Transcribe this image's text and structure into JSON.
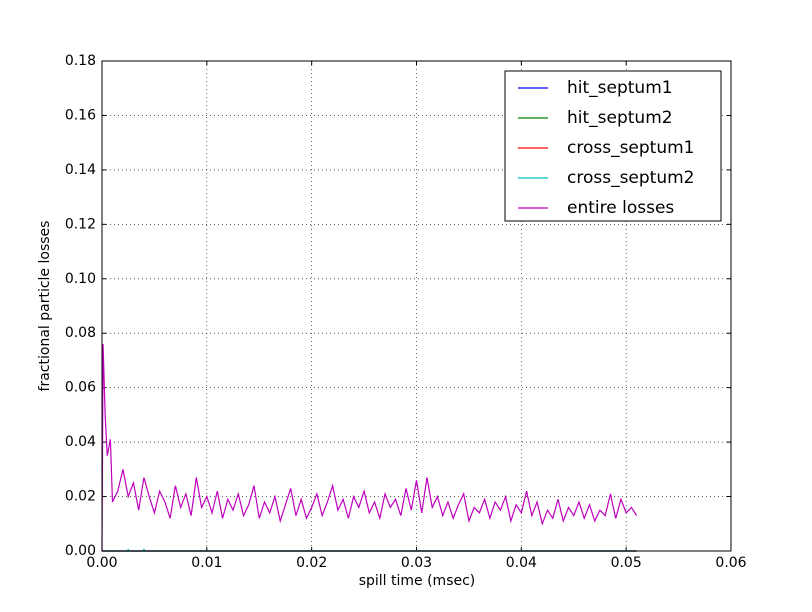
{
  "chart_data": {
    "type": "line",
    "xlabel": "spill time (msec)",
    "ylabel": "fractional particle losses",
    "xlim": [
      0,
      0.06
    ],
    "ylim": [
      0,
      0.18
    ],
    "xticks": [
      {
        "value": 0,
        "label": "0.00"
      },
      {
        "value": 0.01,
        "label": "0.01"
      },
      {
        "value": 0.02,
        "label": "0.02"
      },
      {
        "value": 0.03,
        "label": "0.03"
      },
      {
        "value": 0.04,
        "label": "0.04"
      },
      {
        "value": 0.05,
        "label": "0.05"
      },
      {
        "value": 0.06,
        "label": "0.06"
      }
    ],
    "yticks": [
      {
        "value": 0,
        "label": "0.00"
      },
      {
        "value": 0.02,
        "label": "0.02"
      },
      {
        "value": 0.04,
        "label": "0.04"
      },
      {
        "value": 0.06,
        "label": "0.06"
      },
      {
        "value": 0.08,
        "label": "0.08"
      },
      {
        "value": 0.1,
        "label": "0.10"
      },
      {
        "value": 0.12,
        "label": "0.12"
      },
      {
        "value": 0.14,
        "label": "0.14"
      },
      {
        "value": 0.16,
        "label": "0.16"
      },
      {
        "value": 0.18,
        "label": "0.18"
      }
    ],
    "grid": true,
    "legend": "upper right",
    "series": [
      {
        "name": "hit_septum1",
        "color": "#0000ff",
        "x": [
          0,
          0.051
        ],
        "values": [
          0,
          0
        ]
      },
      {
        "name": "hit_septum2",
        "color": "#008000",
        "x": [
          0,
          0.051
        ],
        "values": [
          0,
          0
        ]
      },
      {
        "name": "cross_septum1",
        "color": "#ff0000",
        "x": [
          0,
          0.051
        ],
        "values": [
          0,
          0
        ]
      },
      {
        "name": "cross_septum2",
        "color": "#00bfbf",
        "x": [
          0,
          0.0024,
          0.0025,
          0.0026,
          0.0039,
          0.004,
          0.0041,
          0.051
        ],
        "values": [
          0,
          0,
          0.0005,
          0,
          0,
          0.0006,
          0,
          0
        ]
      },
      {
        "name": "entire losses",
        "color": "#bf00bf",
        "x": [
          0,
          0.0001,
          0.0003,
          0.0005,
          0.0008,
          0.001,
          0.0015,
          0.002,
          0.0025,
          0.003,
          0.0035,
          0.004,
          0.0045,
          0.005,
          0.0055,
          0.006,
          0.0065,
          0.007,
          0.0075,
          0.008,
          0.0085,
          0.009,
          0.0095,
          0.01,
          0.0105,
          0.011,
          0.0115,
          0.012,
          0.0125,
          0.013,
          0.0135,
          0.014,
          0.0145,
          0.015,
          0.0155,
          0.016,
          0.0165,
          0.017,
          0.0175,
          0.018,
          0.0185,
          0.019,
          0.0195,
          0.02,
          0.0205,
          0.021,
          0.0215,
          0.022,
          0.0225,
          0.023,
          0.0235,
          0.024,
          0.0245,
          0.025,
          0.0255,
          0.026,
          0.0265,
          0.027,
          0.0275,
          0.028,
          0.0285,
          0.029,
          0.0295,
          0.03,
          0.0305,
          0.031,
          0.0315,
          0.032,
          0.0325,
          0.033,
          0.0335,
          0.034,
          0.0345,
          0.035,
          0.0355,
          0.036,
          0.0365,
          0.037,
          0.0375,
          0.038,
          0.0385,
          0.039,
          0.0395,
          0.04,
          0.0405,
          0.041,
          0.0415,
          0.042,
          0.0425,
          0.043,
          0.0435,
          0.044,
          0.0445,
          0.045,
          0.0455,
          0.046,
          0.0465,
          0.047,
          0.0475,
          0.048,
          0.0485,
          0.049,
          0.0495,
          0.05,
          0.0505,
          0.051
        ],
        "values": [
          0,
          0.076,
          0.05,
          0.035,
          0.041,
          0.018,
          0.022,
          0.03,
          0.02,
          0.025,
          0.015,
          0.027,
          0.02,
          0.014,
          0.022,
          0.018,
          0.012,
          0.024,
          0.016,
          0.021,
          0.013,
          0.027,
          0.016,
          0.02,
          0.014,
          0.022,
          0.012,
          0.019,
          0.015,
          0.021,
          0.013,
          0.017,
          0.024,
          0.012,
          0.018,
          0.014,
          0.02,
          0.011,
          0.017,
          0.023,
          0.013,
          0.019,
          0.012,
          0.016,
          0.021,
          0.013,
          0.018,
          0.024,
          0.015,
          0.019,
          0.012,
          0.02,
          0.016,
          0.022,
          0.014,
          0.018,
          0.012,
          0.021,
          0.016,
          0.019,
          0.013,
          0.023,
          0.015,
          0.026,
          0.014,
          0.027,
          0.016,
          0.02,
          0.013,
          0.018,
          0.012,
          0.017,
          0.021,
          0.011,
          0.016,
          0.014,
          0.019,
          0.012,
          0.018,
          0.015,
          0.02,
          0.011,
          0.017,
          0.014,
          0.022,
          0.013,
          0.018,
          0.01,
          0.015,
          0.012,
          0.019,
          0.011,
          0.016,
          0.013,
          0.018,
          0.012,
          0.017,
          0.011,
          0.015,
          0.013,
          0.021,
          0.012,
          0.019,
          0.014,
          0.016,
          0.013
        ]
      }
    ]
  }
}
